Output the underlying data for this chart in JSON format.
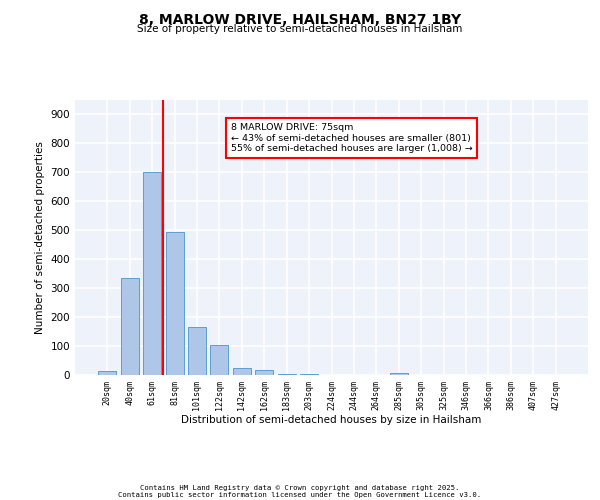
{
  "title": "8, MARLOW DRIVE, HAILSHAM, BN27 1BY",
  "subtitle": "Size of property relative to semi-detached houses in Hailsham",
  "xlabel": "Distribution of semi-detached houses by size in Hailsham",
  "ylabel": "Number of semi-detached properties",
  "bar_labels": [
    "20sqm",
    "40sqm",
    "61sqm",
    "81sqm",
    "101sqm",
    "122sqm",
    "142sqm",
    "162sqm",
    "183sqm",
    "203sqm",
    "224sqm",
    "244sqm",
    "264sqm",
    "285sqm",
    "305sqm",
    "325sqm",
    "346sqm",
    "366sqm",
    "386sqm",
    "407sqm",
    "427sqm"
  ],
  "bar_values": [
    15,
    335,
    703,
    493,
    165,
    105,
    25,
    18,
    5,
    2,
    1,
    0,
    0,
    8,
    0,
    0,
    0,
    0,
    0,
    0,
    0
  ],
  "bar_color": "#aec6e8",
  "bar_edge_color": "#5a9fd4",
  "vline_x": 2.5,
  "vline_color": "red",
  "annotation_text": "8 MARLOW DRIVE: 75sqm\n← 43% of semi-detached houses are smaller (801)\n55% of semi-detached houses are larger (1,008) →",
  "ylim": [
    0,
    950
  ],
  "yticks": [
    0,
    100,
    200,
    300,
    400,
    500,
    600,
    700,
    800,
    900
  ],
  "background_color": "#eef2fb",
  "grid_color": "white",
  "footer_line1": "Contains HM Land Registry data © Crown copyright and database right 2025.",
  "footer_line2": "Contains public sector information licensed under the Open Government Licence v3.0."
}
